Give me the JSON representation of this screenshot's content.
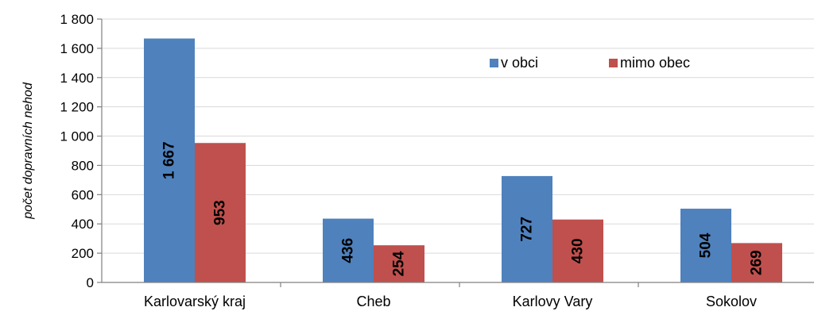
{
  "chart_data": {
    "type": "bar",
    "title": "",
    "xlabel": "",
    "ylabel": "počet dopravních nehod",
    "categories": [
      "Karlovarský kraj",
      "Cheb",
      "Karlovy Vary",
      "Sokolov"
    ],
    "series": [
      {
        "name": "v obci",
        "color": "#4f81bd",
        "values": [
          1667,
          436,
          727,
          504
        ],
        "labels": [
          "1 667",
          "436",
          "727",
          "504"
        ]
      },
      {
        "name": "mimo obec",
        "color": "#c0504d",
        "values": [
          953,
          254,
          430,
          269
        ],
        "labels": [
          "953",
          "254",
          "430",
          "269"
        ]
      }
    ],
    "ylim": [
      0,
      1800
    ],
    "yticks": [
      0,
      200,
      400,
      600,
      800,
      1000,
      1200,
      1400,
      1600,
      1800
    ],
    "ytick_labels": [
      "0",
      "200",
      "400",
      "600",
      "800",
      "1 000",
      "1 200",
      "1 400",
      "1 600",
      "1 800"
    ],
    "grid": true,
    "legend_position": "top-right"
  }
}
